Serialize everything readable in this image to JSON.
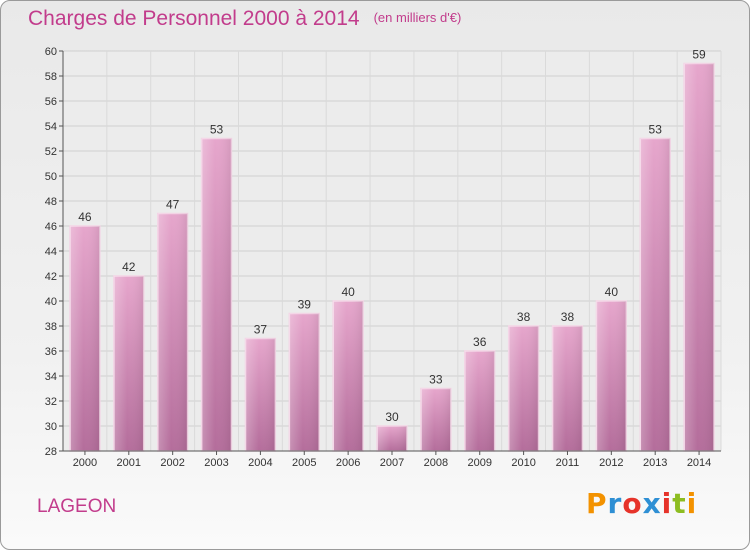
{
  "chart_data": {
    "type": "bar",
    "title": "Charges de Personnel 2000 à 2014",
    "subtitle": "(en milliers d'€)",
    "categories": [
      "2000",
      "2001",
      "2002",
      "2003",
      "2004",
      "2005",
      "2006",
      "2007",
      "2008",
      "2009",
      "2010",
      "2011",
      "2012",
      "2013",
      "2014"
    ],
    "values": [
      46,
      42,
      47,
      53,
      37,
      39,
      40,
      30,
      33,
      36,
      38,
      38,
      40,
      53,
      59
    ],
    "ylim": [
      28,
      60
    ],
    "yticks": [
      28,
      30,
      32,
      34,
      36,
      38,
      40,
      42,
      44,
      46,
      48,
      50,
      52,
      54,
      56,
      58,
      60
    ],
    "grid": true,
    "colors": {
      "bar": "#d88cb8",
      "title": "#c23c8c"
    }
  },
  "footer": {
    "commune": "LAGEON",
    "logo": {
      "letters": [
        "P",
        "r",
        "o",
        "x",
        "i",
        "t",
        "i"
      ],
      "colors": [
        "#f39200",
        "#2e8fd4",
        "#e6332a",
        "#2e8fd4",
        "#e6332a",
        "#8dbd21",
        "#f39200"
      ]
    }
  }
}
